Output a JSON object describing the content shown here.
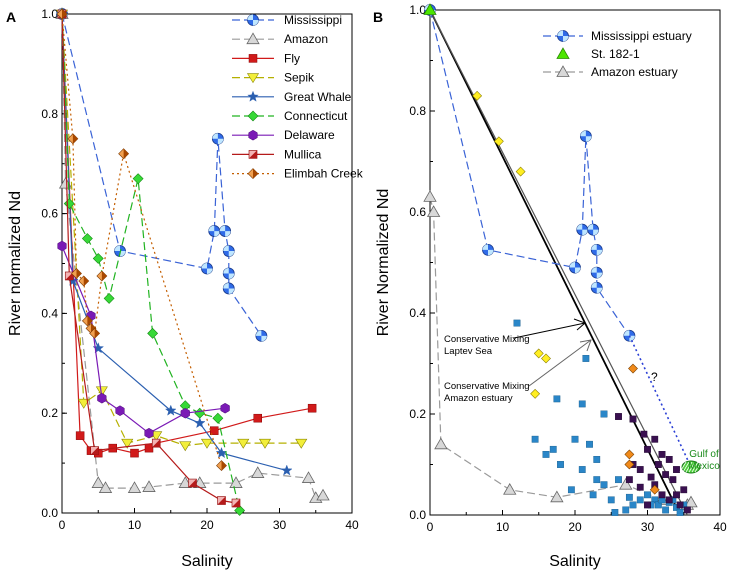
{
  "chart_data": [
    {
      "type": "line",
      "panel_label": "A",
      "xlabel": "Salinity",
      "ylabel": "River normalized Nd",
      "xlim": [
        0,
        40
      ],
      "ylim": [
        0,
        1.0
      ],
      "xticks": [
        "0",
        "10",
        "20",
        "30",
        "40"
      ],
      "yticks": [
        "0.0",
        "0.2",
        "0.4",
        "0.6",
        "0.8",
        "1.0"
      ],
      "legend_position": "top-right",
      "series": [
        {
          "name": "Mississippi",
          "color": "#3a63d6",
          "dash": "8,4",
          "marker": "globe",
          "x": [
            0,
            8,
            20,
            21,
            21.5,
            22.5,
            23,
            23,
            23,
            27.5
          ],
          "y": [
            1.0,
            0.525,
            0.49,
            0.565,
            0.75,
            0.565,
            0.525,
            0.48,
            0.45,
            0.355
          ]
        },
        {
          "name": "Amazon",
          "color": "#9a9a9a",
          "dash": "8,4",
          "marker": "triangle",
          "x": [
            0,
            0.5,
            5,
            6,
            10,
            12,
            17,
            19,
            24,
            27,
            34,
            35,
            36
          ],
          "y": [
            1.0,
            0.66,
            0.06,
            0.05,
            0.05,
            0.052,
            0.06,
            0.06,
            0.06,
            0.08,
            0.07,
            0.03,
            0.035
          ]
        },
        {
          "name": "Fly",
          "color": "#d11a1a",
          "dash": "",
          "marker": "square",
          "x": [
            0,
            2.5,
            4,
            5,
            7,
            10,
            12,
            13,
            21,
            27,
            34.5
          ],
          "y": [
            1.0,
            0.155,
            0.125,
            0.12,
            0.13,
            0.12,
            0.13,
            0.14,
            0.165,
            0.19,
            0.21
          ]
        },
        {
          "name": "Sepik",
          "color": "#b5b000",
          "dash": "8,4",
          "marker": "tri-down",
          "x": [
            0,
            3,
            5.5,
            9,
            13,
            17,
            20,
            25,
            28,
            33
          ],
          "y": [
            1.0,
            0.22,
            0.245,
            0.14,
            0.155,
            0.135,
            0.14,
            0.14,
            0.14,
            0.14
          ]
        },
        {
          "name": "Great Whale",
          "color": "#2b5fb0",
          "dash": "",
          "marker": "star",
          "x": [
            0,
            1.5,
            5,
            15,
            19,
            22,
            31
          ],
          "y": [
            1.0,
            0.465,
            0.33,
            0.205,
            0.18,
            0.12,
            0.085
          ]
        },
        {
          "name": "Connecticut",
          "color": "#21b321",
          "dash": "8,4",
          "marker": "diamond",
          "x": [
            0,
            1,
            3.5,
            5,
            6.5,
            10.5,
            12.5,
            17,
            19,
            21.5,
            24.5
          ],
          "y": [
            1.0,
            0.62,
            0.55,
            0.51,
            0.43,
            0.67,
            0.36,
            0.215,
            0.2,
            0.19,
            0.005
          ]
        },
        {
          "name": "Delaware",
          "color": "#7a1ab5",
          "dash": "",
          "marker": "hexagon",
          "x": [
            0,
            4,
            5.5,
            8,
            12,
            17,
            22.5
          ],
          "y": [
            0.535,
            0.395,
            0.23,
            0.205,
            0.16,
            0.2,
            0.21
          ]
        },
        {
          "name": "Mullica",
          "color": "#b51a1a",
          "dash": "",
          "marker": "halfsquare",
          "x": [
            0,
            1,
            4.5,
            13,
            18,
            22,
            24
          ],
          "y": [
            1.0,
            0.475,
            0.125,
            0.14,
            0.06,
            0.025,
            0.02
          ]
        },
        {
          "name": "Elimbah Creek",
          "color": "#c45e00",
          "dash": "2,3",
          "marker": "halfdiamond",
          "x": [
            0,
            1.5,
            2,
            3,
            3.5,
            4,
            4.5,
            5.5,
            8.5,
            22
          ],
          "y": [
            1.0,
            0.75,
            0.48,
            0.465,
            0.385,
            0.37,
            0.36,
            0.475,
            0.72,
            0.095
          ]
        }
      ]
    },
    {
      "type": "scatter",
      "panel_label": "B",
      "xlabel": "Salinity",
      "ylabel": "River Normalized Nd",
      "xlim": [
        0,
        40
      ],
      "ylim": [
        0,
        1.0
      ],
      "xticks": [
        "0",
        "10",
        "20",
        "30",
        "40"
      ],
      "yticks": [
        "0.0",
        "0.2",
        "0.4",
        "0.6",
        "0.8",
        "1.0"
      ],
      "legend_position": "top-right",
      "legend": [
        "Mississippi estuary",
        "St. 182-1",
        "Amazon estuary"
      ],
      "mississippi_estuary": {
        "x": [
          0,
          8,
          20,
          21,
          21.5,
          22.5,
          23,
          23,
          23,
          27.5
        ],
        "y": [
          1.0,
          0.525,
          0.49,
          0.565,
          0.75,
          0.565,
          0.525,
          0.48,
          0.45,
          0.355
        ]
      },
      "st_182_1": {
        "x": [
          0
        ],
        "y": [
          1.0
        ]
      },
      "amazon_estuary": {
        "x": [
          0,
          0.5,
          1.5,
          11,
          17.5,
          27,
          32,
          35.5,
          36
        ],
        "y": [
          0.63,
          0.6,
          0.14,
          0.05,
          0.035,
          0.06,
          0.03,
          0.02,
          0.025
        ]
      },
      "mixing_lines": [
        {
          "label": "Conservative Mixing\nLaptev Sea",
          "x": [
            0,
            34.5
          ],
          "y": [
            1.0,
            0.0
          ]
        },
        {
          "label": "Conservative Mixing\nAmazon estuary",
          "x": [
            0,
            35.5
          ],
          "y": [
            1.0,
            0.0
          ]
        }
      ],
      "annotations": {
        "gulf": "Gulf of\nMexico",
        "question": "?"
      },
      "gulf_point": {
        "x": 36,
        "y": 0.095
      },
      "dotted_extension": {
        "x": [
          27.5,
          36
        ],
        "y": [
          0.355,
          0.095
        ]
      },
      "yellow_diamonds": {
        "x": [
          6.5,
          9.5,
          12.5,
          15,
          16,
          14.5
        ],
        "y": [
          0.83,
          0.74,
          0.68,
          0.32,
          0.31,
          0.24
        ]
      },
      "orange_diamonds": {
        "x": [
          28,
          27.5,
          27.5,
          31
        ],
        "y": [
          0.29,
          0.12,
          0.1,
          0.05
        ]
      },
      "blue_squares": {
        "x": [
          12,
          21.5,
          17.5,
          21,
          24,
          14.5,
          17,
          20,
          22,
          23,
          16,
          18,
          21,
          23,
          24,
          26,
          19.5,
          22.5,
          25,
          27.5,
          28,
          29,
          30,
          31,
          31.5,
          32,
          33,
          32.5,
          34,
          33.5,
          35,
          34.5,
          30.5,
          27,
          25.5
        ],
        "y": [
          0.38,
          0.31,
          0.23,
          0.22,
          0.2,
          0.15,
          0.13,
          0.15,
          0.14,
          0.11,
          0.12,
          0.1,
          0.09,
          0.07,
          0.06,
          0.07,
          0.05,
          0.04,
          0.03,
          0.035,
          0.02,
          0.03,
          0.04,
          0.03,
          0.02,
          0.03,
          0.025,
          0.01,
          0.015,
          0.03,
          0.02,
          0.005,
          0.02,
          0.01,
          0.005
        ]
      },
      "purple_squares": {
        "x": [
          26,
          28,
          29.5,
          31,
          32,
          30,
          33,
          31.5,
          29,
          34,
          32.5,
          30.5,
          33.5,
          35,
          34,
          31,
          32,
          33,
          30,
          27.5,
          29,
          35.5,
          28,
          34.5
        ],
        "y": [
          0.195,
          0.19,
          0.16,
          0.15,
          0.12,
          0.13,
          0.11,
          0.1,
          0.09,
          0.09,
          0.08,
          0.075,
          0.07,
          0.05,
          0.04,
          0.06,
          0.04,
          0.03,
          0.02,
          0.07,
          0.055,
          0.01,
          0.1,
          0.02
        ]
      }
    }
  ]
}
